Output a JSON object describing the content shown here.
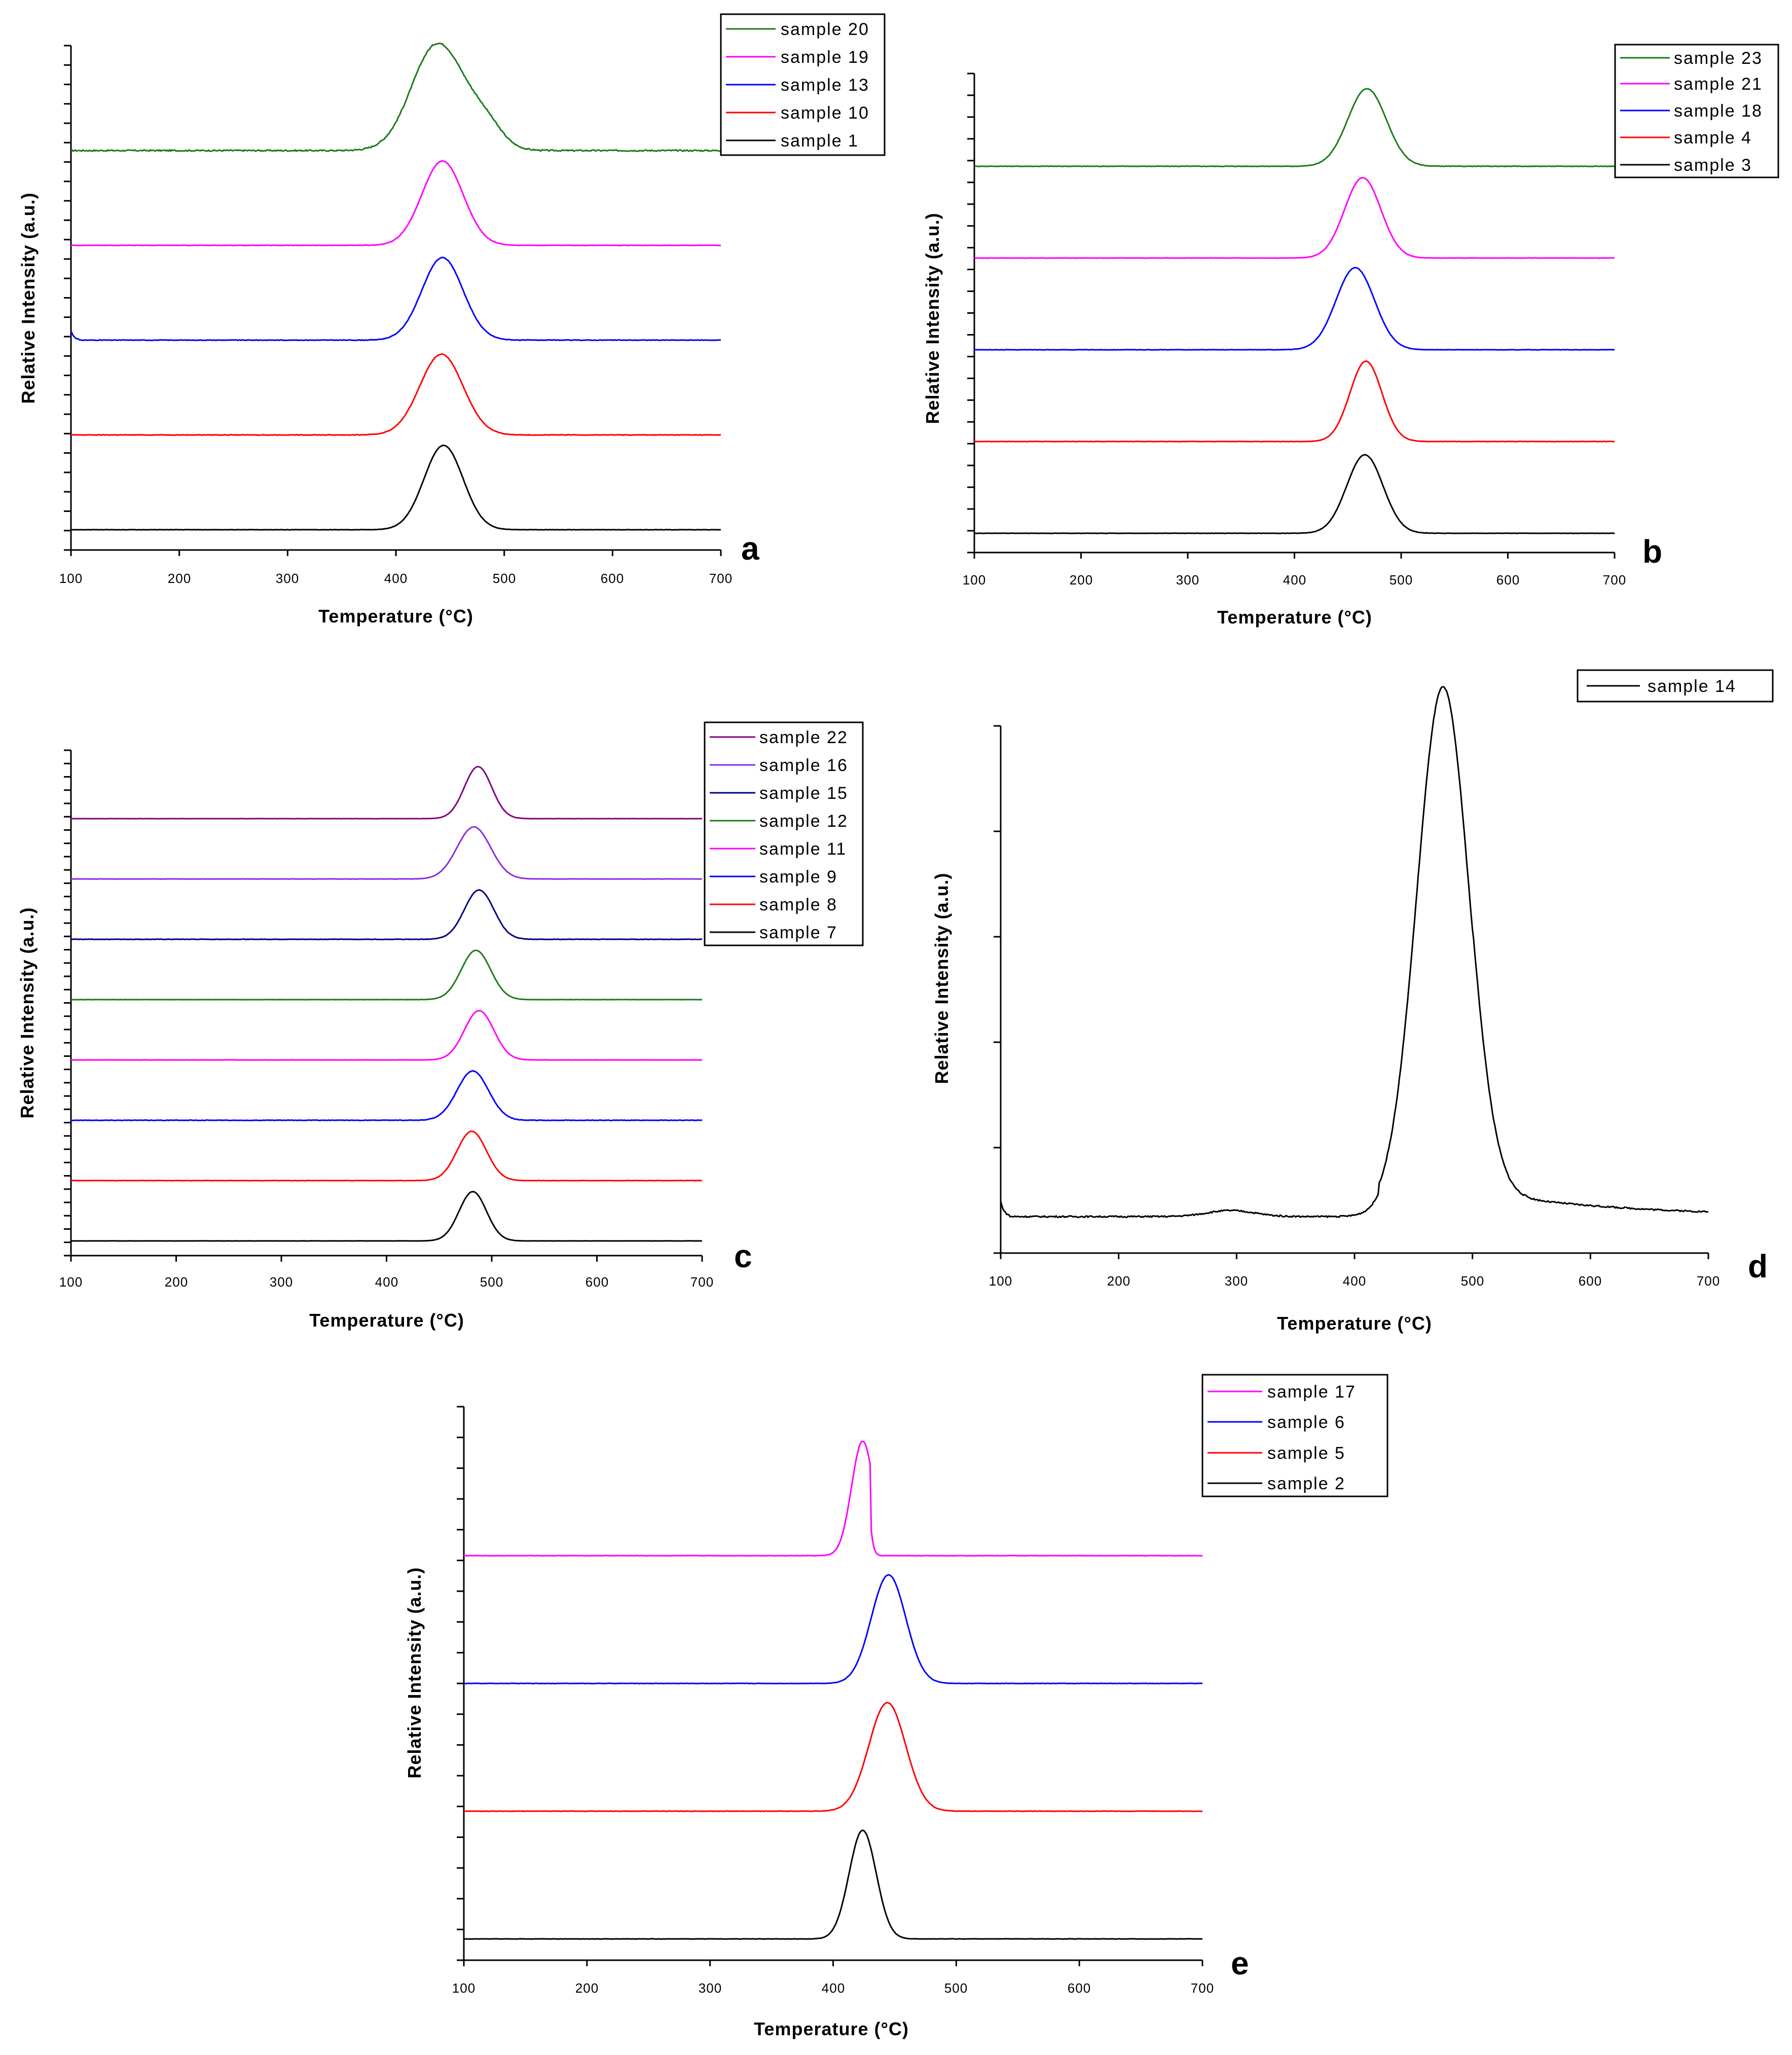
{
  "figure": {
    "chart_data": [
      {
        "type": "line",
        "panel_label": "a",
        "xlabel": "Temperature (°C)",
        "ylabel": "Relative Intensity (a.u.)",
        "xlim": [
          100,
          700
        ],
        "x_ticks": [
          100,
          200,
          300,
          400,
          500,
          600,
          700
        ],
        "tick_labels": [
          "100",
          "200",
          "300",
          "400",
          "500",
          "600",
          "700"
        ],
        "legend": [
          "sample 20",
          "sample 19",
          "sample 13",
          "sample 10",
          "sample 1"
        ],
        "series": [
          {
            "name": "sample 20",
            "color": "#1a7a1a",
            "baseline": 4,
            "peak_temp": 445,
            "peak_height": 0.85,
            "peak_width": 26,
            "shoulder": [
              {
                "temp": 430,
                "height": 0.35,
                "width": 20
              },
              {
                "temp": 485,
                "height": 0.15,
                "width": 14
              }
            ],
            "noise": 0.015
          },
          {
            "name": "sample 19",
            "color": "#ff00ff",
            "baseline": 3,
            "peak_temp": 443,
            "peak_height": 0.9,
            "peak_width": 19,
            "noise": 0.004
          },
          {
            "name": "sample 13",
            "color": "#0000ff",
            "baseline": 2,
            "peak_temp": 443,
            "peak_height": 0.88,
            "peak_width": 19,
            "start_spike": 0.1,
            "noise": 0.006
          },
          {
            "name": "sample 10",
            "color": "#ff0000",
            "baseline": 1,
            "peak_temp": 442,
            "peak_height": 0.86,
            "peak_width": 20,
            "noise": 0.006
          },
          {
            "name": "sample 1",
            "color": "#000000",
            "baseline": 0,
            "peak_temp": 444,
            "peak_height": 0.9,
            "peak_width": 18,
            "noise": 0.003
          }
        ]
      },
      {
        "type": "line",
        "panel_label": "b",
        "xlabel": "Temperature (°C)",
        "ylabel": "Relative Intensity (a.u.)",
        "xlim": [
          100,
          700
        ],
        "x_ticks": [
          100,
          200,
          300,
          400,
          500,
          600,
          700
        ],
        "tick_labels": [
          "100",
          "200",
          "300",
          "400",
          "500",
          "600",
          "700"
        ],
        "legend": [
          "sample 23",
          "sample 21",
          "sample 18",
          "sample 4",
          "sample 3"
        ],
        "series": [
          {
            "name": "sample 23",
            "color": "#1a7a1a",
            "baseline": 4,
            "peak_temp": 468,
            "peak_height": 0.85,
            "peak_width": 18,
            "noise": 0.006
          },
          {
            "name": "sample 21",
            "color": "#ff00ff",
            "baseline": 3,
            "peak_temp": 464,
            "peak_height": 0.88,
            "peak_width": 17,
            "noise": 0.003
          },
          {
            "name": "sample 18",
            "color": "#0000ff",
            "baseline": 2,
            "peak_temp": 457,
            "peak_height": 0.9,
            "peak_width": 18,
            "noise": 0.004
          },
          {
            "name": "sample 4",
            "color": "#ff0000",
            "baseline": 1,
            "peak_temp": 467,
            "peak_height": 0.88,
            "peak_width": 15,
            "noise": 0.003
          },
          {
            "name": "sample 3",
            "color": "#000000",
            "baseline": 0,
            "peak_temp": 466,
            "peak_height": 0.86,
            "peak_width": 17,
            "noise": 0.003
          }
        ]
      },
      {
        "type": "line",
        "panel_label": "c",
        "xlabel": "Temperature (°C)",
        "ylabel": "Relative Intensity (a.u.)",
        "xlim": [
          100,
          700
        ],
        "x_ticks": [
          100,
          200,
          300,
          400,
          500,
          600,
          700
        ],
        "tick_labels": [
          "100",
          "200",
          "300",
          "400",
          "500",
          "600",
          "700"
        ],
        "legend": [
          "sample 22",
          "sample 16",
          "sample 15",
          "sample 12",
          "sample 11",
          "sample 9",
          "sample 8",
          "sample 7"
        ],
        "series": [
          {
            "name": "sample 22",
            "color": "#800080",
            "baseline": 7,
            "peak_temp": 487,
            "peak_height": 0.95,
            "peak_width": 13,
            "noise": 0.003
          },
          {
            "name": "sample 16",
            "color": "#8a2be2",
            "baseline": 6,
            "peak_temp": 483,
            "peak_height": 0.95,
            "peak_width": 16,
            "noise": 0.004
          },
          {
            "name": "sample 15",
            "color": "#000080",
            "baseline": 5,
            "peak_temp": 488,
            "peak_height": 0.9,
            "peak_width": 14,
            "noise": 0.008
          },
          {
            "name": "sample 12",
            "color": "#1a7a1a",
            "baseline": 4,
            "peak_temp": 485,
            "peak_height": 0.9,
            "peak_width": 14,
            "noise": 0.003
          },
          {
            "name": "sample 11",
            "color": "#ff00ff",
            "baseline": 3,
            "peak_temp": 488,
            "peak_height": 0.9,
            "peak_width": 14,
            "noise": 0.003
          },
          {
            "name": "sample 9",
            "color": "#0000ff",
            "baseline": 2,
            "peak_temp": 482,
            "peak_height": 0.9,
            "peak_width": 15,
            "noise": 0.009
          },
          {
            "name": "sample 8",
            "color": "#ff0000",
            "baseline": 1,
            "peak_temp": 481,
            "peak_height": 0.9,
            "peak_width": 14,
            "noise": 0.004
          },
          {
            "name": "sample 7",
            "color": "#000000",
            "baseline": 0,
            "peak_temp": 482,
            "peak_height": 0.9,
            "peak_width": 13,
            "noise": 0.003
          }
        ]
      },
      {
        "type": "line",
        "panel_label": "d",
        "xlabel": "Temperature (°C)",
        "ylabel": "Relative Intensity (a.u.)",
        "xlim": [
          100,
          700
        ],
        "x_ticks": [
          100,
          200,
          300,
          400,
          500,
          600,
          700
        ],
        "tick_labels": [
          "100",
          "200",
          "300",
          "400",
          "500",
          "600",
          "700"
        ],
        "legend": [
          "sample 14"
        ],
        "series": [
          {
            "name": "sample 14",
            "color": "#000000",
            "baseline": 0,
            "peak_temp": 475,
            "peak_height": 1.0,
            "peak_width": 22,
            "level": 0.04,
            "small_peak": {
              "temp": 295,
              "height": 0.012,
              "width": 20
            },
            "tail": 0.05,
            "start_spike": 0.03,
            "noise": 0.003
          }
        ]
      },
      {
        "type": "line",
        "panel_label": "e",
        "xlabel": "Temperature (°C)",
        "ylabel": "Relative Intensity (a.u.)",
        "xlim": [
          100,
          700
        ],
        "x_ticks": [
          100,
          200,
          300,
          400,
          500,
          600,
          700
        ],
        "tick_labels": [
          "100",
          "200",
          "300",
          "400",
          "500",
          "600",
          "700"
        ],
        "legend": [
          "sample 17",
          "sample 6",
          "sample 5",
          "sample 2"
        ],
        "series": [
          {
            "name": "sample 17",
            "color": "#ff00ff",
            "baseline": 3,
            "peak_temp": 424,
            "peak_height": 0.95,
            "peak_width": 9,
            "cutoff": 430,
            "noise": 0.003
          },
          {
            "name": "sample 6",
            "color": "#0000ff",
            "baseline": 2,
            "peak_temp": 445,
            "peak_height": 0.9,
            "peak_width": 14,
            "noise": 0.003
          },
          {
            "name": "sample 5",
            "color": "#ff0000",
            "baseline": 1,
            "peak_temp": 444,
            "peak_height": 0.9,
            "peak_width": 15,
            "noise": 0.003
          },
          {
            "name": "sample 2",
            "color": "#000000",
            "baseline": 0,
            "peak_temp": 424,
            "peak_height": 0.9,
            "peak_width": 11,
            "noise": 0.003
          }
        ]
      }
    ]
  }
}
